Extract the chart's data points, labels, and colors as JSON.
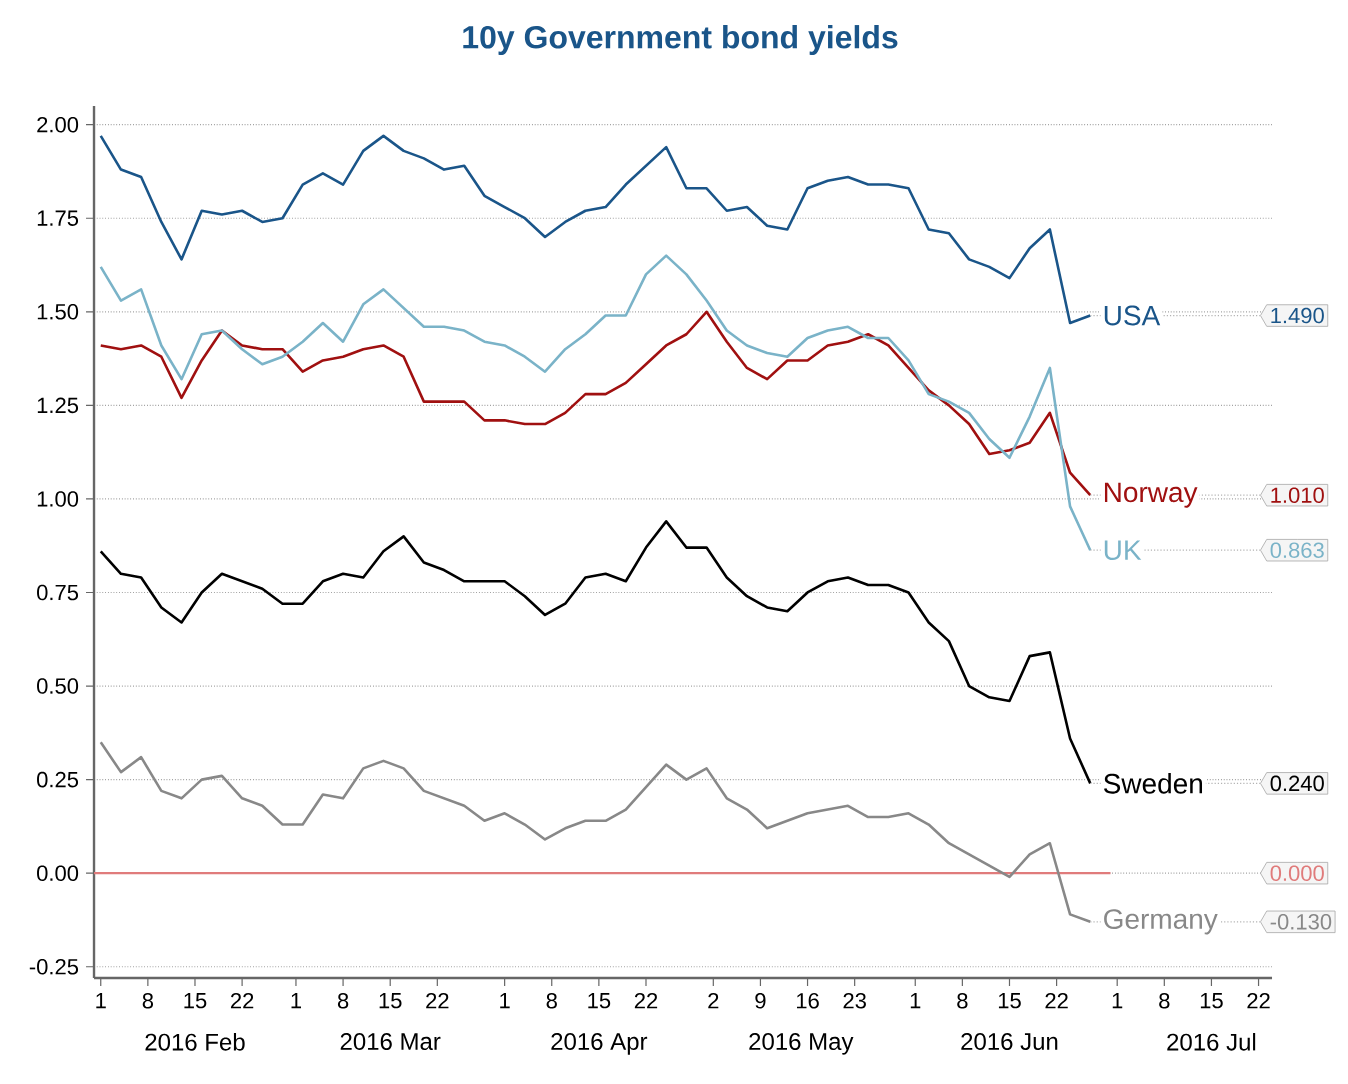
{
  "chart_data": {
    "type": "line",
    "title": "10y Government bond yields",
    "x": [
      "2016-02-01",
      "2016-02-04",
      "2016-02-07",
      "2016-02-10",
      "2016-02-13",
      "2016-02-16",
      "2016-02-19",
      "2016-02-22",
      "2016-02-25",
      "2016-02-28",
      "2016-03-02",
      "2016-03-05",
      "2016-03-08",
      "2016-03-11",
      "2016-03-14",
      "2016-03-17",
      "2016-03-20",
      "2016-03-23",
      "2016-03-26",
      "2016-03-29",
      "2016-04-01",
      "2016-04-04",
      "2016-04-07",
      "2016-04-10",
      "2016-04-13",
      "2016-04-16",
      "2016-04-19",
      "2016-04-22",
      "2016-04-25",
      "2016-04-28",
      "2016-05-01",
      "2016-05-04",
      "2016-05-07",
      "2016-05-10",
      "2016-05-13",
      "2016-05-16",
      "2016-05-19",
      "2016-05-22",
      "2016-05-25",
      "2016-05-28",
      "2016-05-31",
      "2016-06-03",
      "2016-06-06",
      "2016-06-09",
      "2016-06-12",
      "2016-06-15",
      "2016-06-18",
      "2016-06-21",
      "2016-06-24",
      "2016-06-27"
    ],
    "series": [
      {
        "name": "USA",
        "color": "#1a5589",
        "values": [
          1.97,
          1.88,
          1.86,
          1.74,
          1.64,
          1.77,
          1.76,
          1.77,
          1.74,
          1.75,
          1.84,
          1.87,
          1.84,
          1.93,
          1.97,
          1.93,
          1.91,
          1.88,
          1.89,
          1.81,
          1.78,
          1.75,
          1.7,
          1.74,
          1.77,
          1.78,
          1.84,
          1.89,
          1.94,
          1.83,
          1.83,
          1.77,
          1.78,
          1.73,
          1.72,
          1.83,
          1.85,
          1.86,
          1.84,
          1.84,
          1.83,
          1.72,
          1.71,
          1.64,
          1.62,
          1.59,
          1.67,
          1.72,
          1.47,
          1.49
        ]
      },
      {
        "name": "Norway",
        "color": "#a01010",
        "values": [
          1.41,
          1.4,
          1.41,
          1.38,
          1.27,
          1.37,
          1.45,
          1.41,
          1.4,
          1.4,
          1.34,
          1.37,
          1.38,
          1.4,
          1.41,
          1.38,
          1.26,
          1.26,
          1.26,
          1.21,
          1.21,
          1.2,
          1.2,
          1.23,
          1.28,
          1.28,
          1.31,
          1.36,
          1.41,
          1.44,
          1.5,
          1.42,
          1.35,
          1.32,
          1.37,
          1.37,
          1.41,
          1.42,
          1.44,
          1.41,
          1.35,
          1.29,
          1.25,
          1.2,
          1.12,
          1.13,
          1.15,
          1.23,
          1.07,
          1.01
        ]
      },
      {
        "name": "UK",
        "color": "#7ab3c8",
        "values": [
          1.62,
          1.53,
          1.56,
          1.41,
          1.32,
          1.44,
          1.45,
          1.4,
          1.36,
          1.38,
          1.42,
          1.47,
          1.42,
          1.52,
          1.56,
          1.51,
          1.46,
          1.46,
          1.45,
          1.42,
          1.41,
          1.38,
          1.34,
          1.4,
          1.44,
          1.49,
          1.49,
          1.6,
          1.65,
          1.6,
          1.53,
          1.45,
          1.41,
          1.39,
          1.38,
          1.43,
          1.45,
          1.46,
          1.43,
          1.43,
          1.37,
          1.28,
          1.26,
          1.23,
          1.16,
          1.11,
          1.22,
          1.35,
          0.98,
          0.863
        ]
      },
      {
        "name": "Sweden",
        "color": "#000000",
        "values": [
          0.86,
          0.8,
          0.79,
          0.71,
          0.67,
          0.75,
          0.8,
          0.78,
          0.76,
          0.72,
          0.72,
          0.78,
          0.8,
          0.79,
          0.86,
          0.9,
          0.83,
          0.81,
          0.78,
          0.78,
          0.78,
          0.74,
          0.69,
          0.72,
          0.79,
          0.8,
          0.78,
          0.87,
          0.94,
          0.87,
          0.87,
          0.79,
          0.74,
          0.71,
          0.7,
          0.75,
          0.78,
          0.79,
          0.77,
          0.77,
          0.75,
          0.67,
          0.62,
          0.5,
          0.47,
          0.46,
          0.58,
          0.59,
          0.36,
          0.24
        ]
      },
      {
        "name": "Germany",
        "color": "#888888",
        "values": [
          0.35,
          0.27,
          0.31,
          0.22,
          0.2,
          0.25,
          0.26,
          0.2,
          0.18,
          0.13,
          0.13,
          0.21,
          0.2,
          0.28,
          0.3,
          0.28,
          0.22,
          0.2,
          0.18,
          0.14,
          0.16,
          0.13,
          0.09,
          0.12,
          0.14,
          0.14,
          0.17,
          0.23,
          0.29,
          0.25,
          0.28,
          0.2,
          0.17,
          0.12,
          0.14,
          0.16,
          0.17,
          0.18,
          0.15,
          0.15,
          0.16,
          0.13,
          0.08,
          0.05,
          0.02,
          -0.01,
          0.05,
          0.08,
          -0.11,
          -0.13
        ]
      }
    ],
    "ref_lines": [
      {
        "axis": "y",
        "value": 0,
        "label": "0.000",
        "color": "#e07b7b"
      }
    ],
    "xlim": [
      "2016-01-31",
      "2016-07-24"
    ],
    "xticks": [
      {
        "value": "2016-02-01",
        "label": "1"
      },
      {
        "value": "2016-02-08",
        "label": "8"
      },
      {
        "value": "2016-02-15",
        "label": "15"
      },
      {
        "value": "2016-02-22",
        "label": "22"
      },
      {
        "value": "2016-03-01",
        "label": "1"
      },
      {
        "value": "2016-03-08",
        "label": "8"
      },
      {
        "value": "2016-03-15",
        "label": "15"
      },
      {
        "value": "2016-03-22",
        "label": "22"
      },
      {
        "value": "2016-04-01",
        "label": "1"
      },
      {
        "value": "2016-04-08",
        "label": "8"
      },
      {
        "value": "2016-04-15",
        "label": "15"
      },
      {
        "value": "2016-04-22",
        "label": "22"
      },
      {
        "value": "2016-05-02",
        "label": "2"
      },
      {
        "value": "2016-05-09",
        "label": "9"
      },
      {
        "value": "2016-05-16",
        "label": "16"
      },
      {
        "value": "2016-05-23",
        "label": "23"
      },
      {
        "value": "2016-06-01",
        "label": "1"
      },
      {
        "value": "2016-06-08",
        "label": "8"
      },
      {
        "value": "2016-06-15",
        "label": "15"
      },
      {
        "value": "2016-06-22",
        "label": "22"
      },
      {
        "value": "2016-07-01",
        "label": "1"
      },
      {
        "value": "2016-07-08",
        "label": "8"
      },
      {
        "value": "2016-07-15",
        "label": "15"
      },
      {
        "value": "2016-07-22",
        "label": "22"
      }
    ],
    "ylim": [
      -0.28,
      2.05
    ],
    "yticks": [
      {
        "value": -0.25,
        "label": "-0.25"
      },
      {
        "value": 0,
        "label": "0.00"
      },
      {
        "value": 0.25,
        "label": "0.25"
      },
      {
        "value": 0.5,
        "label": "0.50"
      },
      {
        "value": 0.75,
        "label": "0.75"
      },
      {
        "value": 1,
        "label": "1.00"
      },
      {
        "value": 1.25,
        "label": "1.25"
      },
      {
        "value": 1.5,
        "label": "1.50"
      },
      {
        "value": 1.75,
        "label": "1.75"
      },
      {
        "value": 2,
        "label": "2.00"
      }
    ],
    "annotations": [
      "2016 Feb",
      "2016 Mar",
      "2016 Apr",
      "2016 May",
      "2016 Jun",
      "2016 Jul",
      {
        "text": "1.490",
        "x": "2016-06-27",
        "y": 1.49
      },
      {
        "text": "1.010",
        "x": "2016-06-27",
        "y": 1.01
      },
      {
        "text": "0.863",
        "x": "2016-06-27",
        "y": 0.863
      },
      {
        "text": "0.240",
        "x": "2016-06-27",
        "y": 0.24
      },
      {
        "text": "-0.130",
        "x": "2016-06-27",
        "y": -0.13
      }
    ],
    "grid": "y"
  }
}
